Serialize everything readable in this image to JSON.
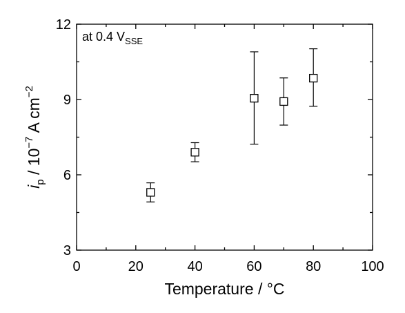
{
  "chart_data": {
    "type": "scatter",
    "x": [
      25,
      40,
      60,
      70,
      80
    ],
    "y": [
      5.3,
      6.9,
      9.05,
      8.92,
      9.85
    ],
    "y_err_low": [
      4.92,
      6.52,
      7.22,
      7.98,
      8.73
    ],
    "y_err_high": [
      5.68,
      7.28,
      10.9,
      9.86,
      11.02
    ],
    "xlim": [
      0,
      100
    ],
    "ylim": [
      3,
      12
    ],
    "x_ticks": [
      0,
      20,
      40,
      60,
      80,
      100
    ],
    "y_ticks": [
      3,
      6,
      9,
      12
    ],
    "xlabel": "Temperature / °C",
    "ylabel": {
      "main": "i",
      "sub": "p",
      "middle": " / 10",
      "exp1": "−7",
      "unit": " A cm",
      "exp2": "−2"
    },
    "annotation": {
      "main": "at 0.4 V",
      "sub": "SSE"
    },
    "marker": "open-square",
    "grid": false
  }
}
